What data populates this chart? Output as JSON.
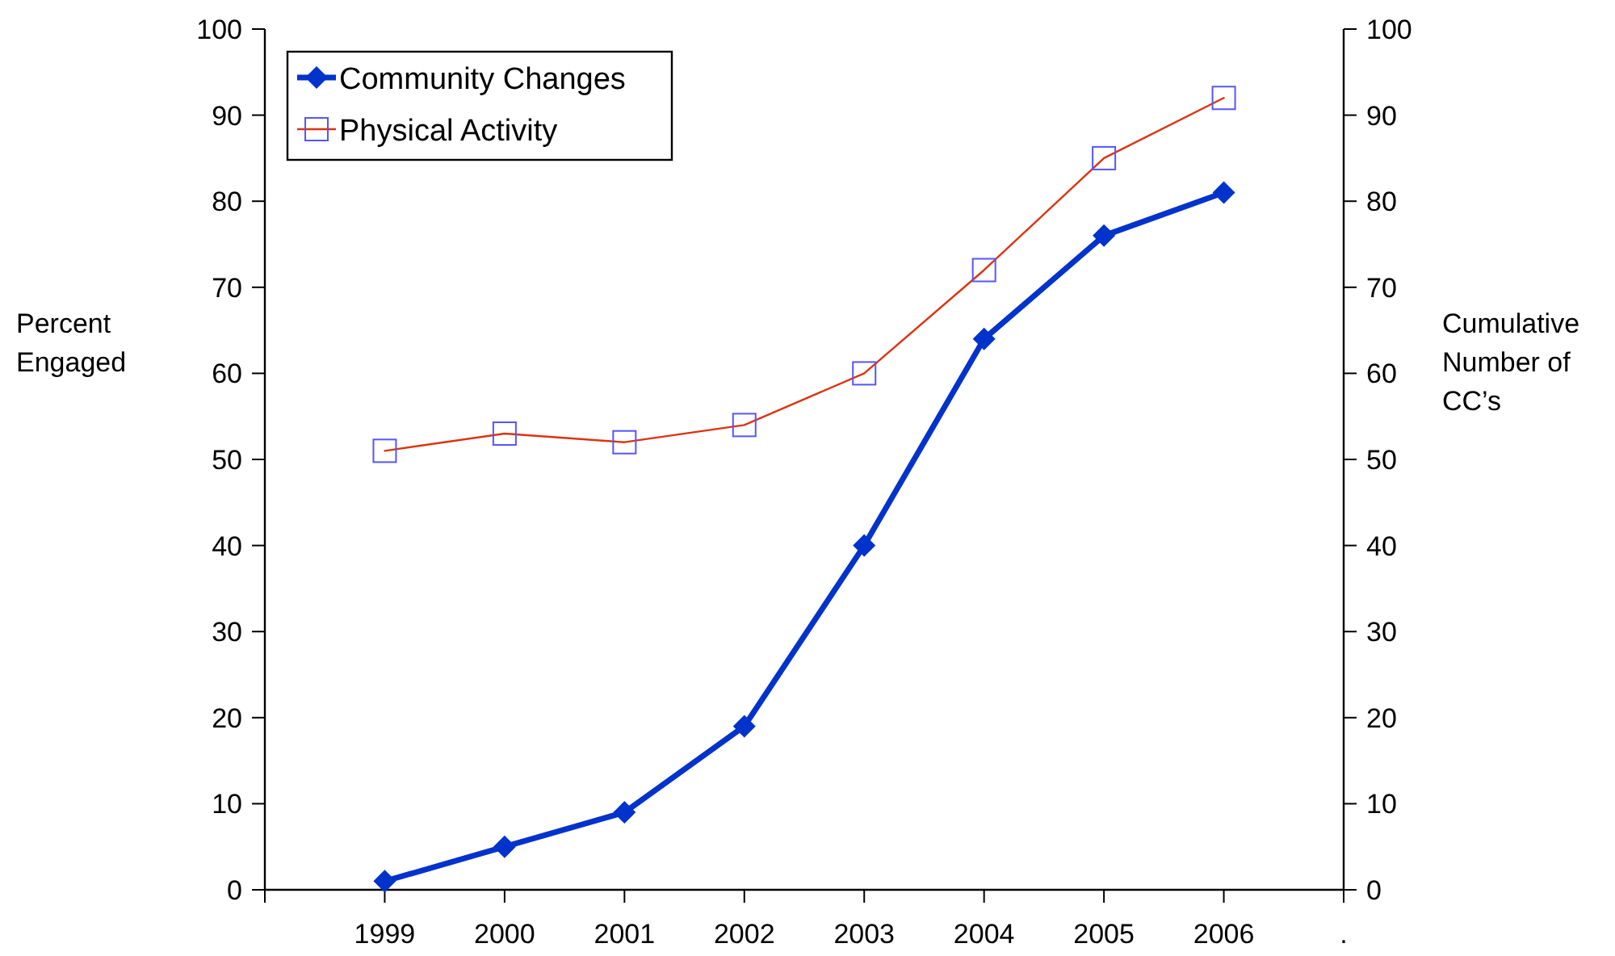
{
  "chart_data": {
    "type": "line",
    "ylabel": "Percent Engaged",
    "y2label": "Cumulative Number of CC’s",
    "categories": [
      null,
      "1999",
      "2000",
      "2001",
      "2002",
      "2003",
      "2004",
      "2005",
      "2006",
      "."
    ],
    "series": [
      {
        "name": "Community Changes",
        "color": "#0033cc",
        "axis": "y2",
        "marker": "diamond",
        "values": [
          null,
          1,
          5,
          9,
          19,
          40,
          64,
          76,
          81,
          null
        ]
      },
      {
        "name": "Physical Activity",
        "color": "#dd3311",
        "marker": "square",
        "values": [
          null,
          51,
          53,
          52,
          54,
          60,
          72,
          85,
          92,
          null
        ]
      }
    ],
    "ylim": [
      0,
      100
    ],
    "yticks": [
      0,
      10,
      20,
      30,
      40,
      50,
      60,
      70,
      80,
      90,
      100
    ],
    "y2lim": [
      0,
      100
    ],
    "y2ticks": [
      0,
      10,
      20,
      30,
      40,
      50,
      60,
      70,
      80,
      90,
      100
    ],
    "legend": "top left",
    "grid": false
  }
}
